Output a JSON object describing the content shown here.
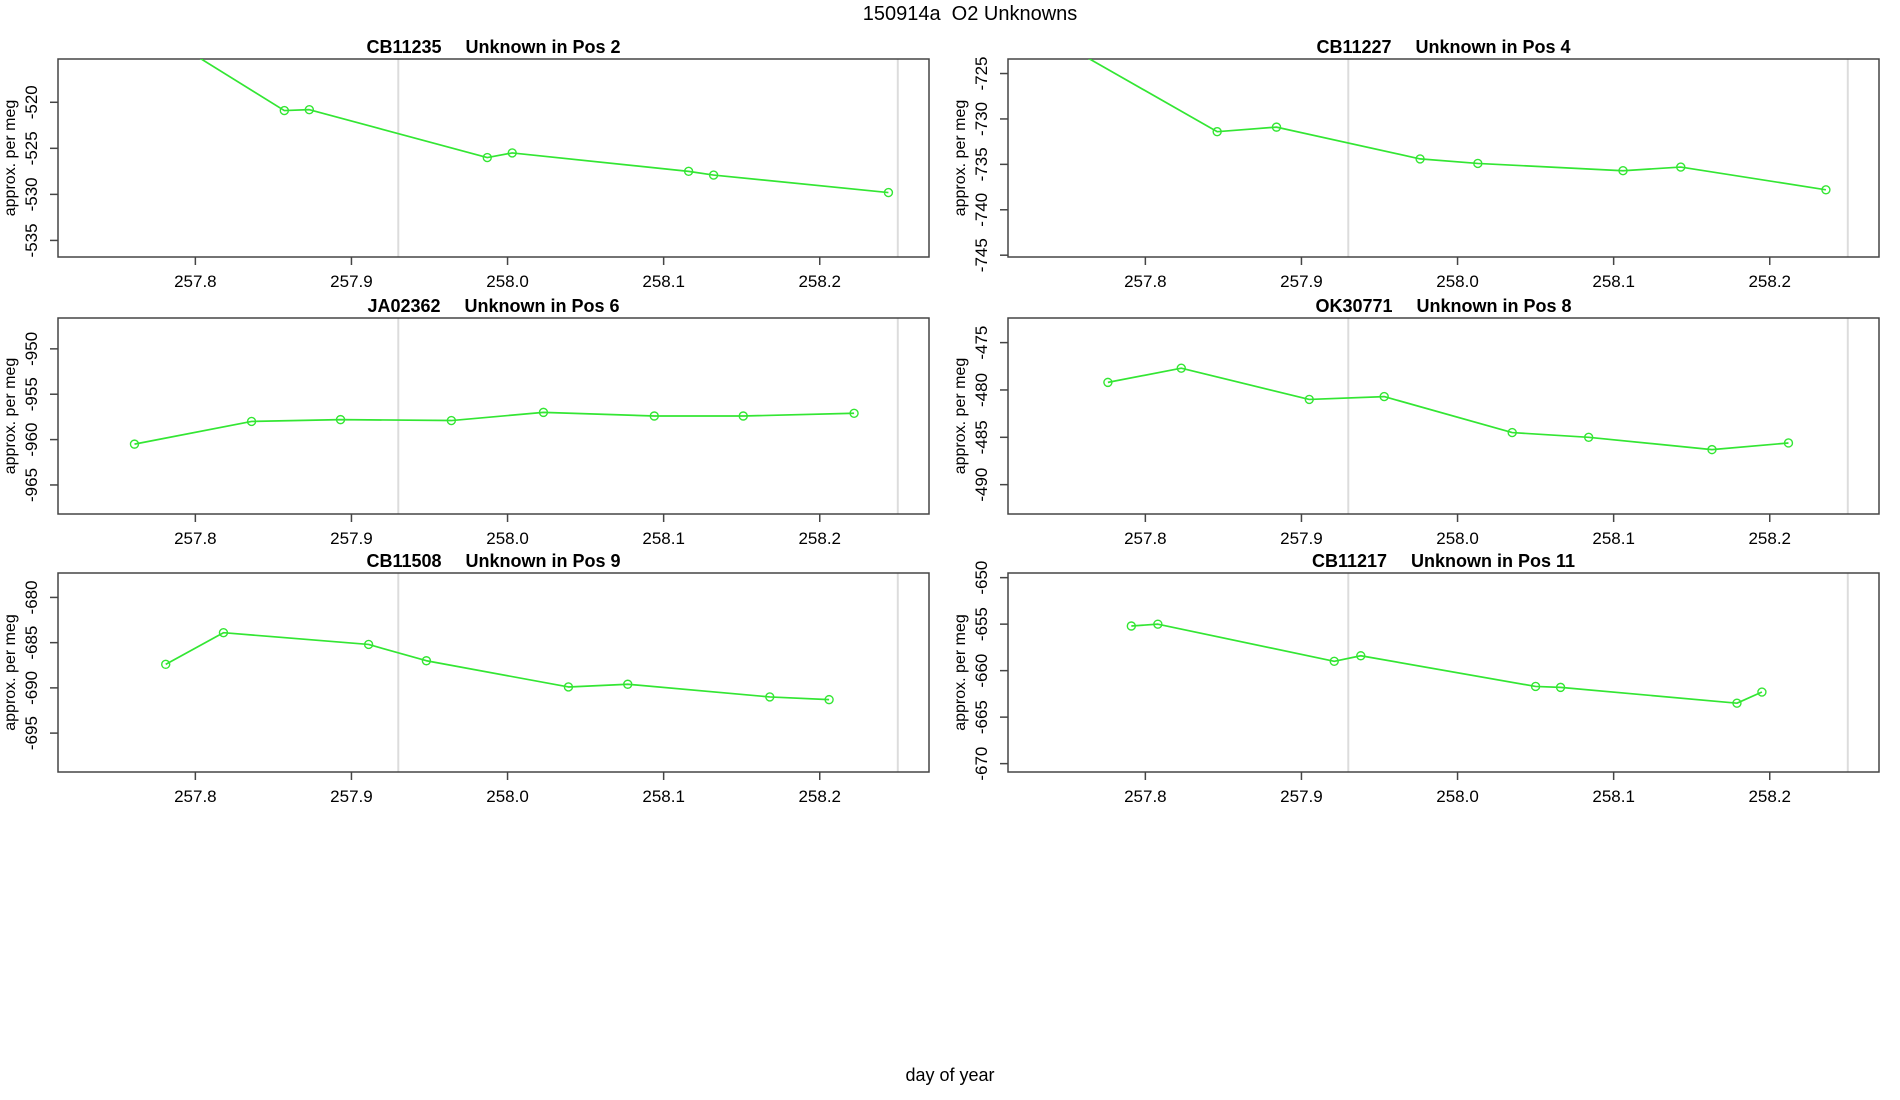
{
  "figure": {
    "title": "150914a  O2 Unknowns",
    "xlabel": "day of year",
    "background_color": "#ffffff",
    "line_color": "#33e633",
    "frame_color": "#454545",
    "refline_color": "#dcdcdc",
    "xlim": [
      257.712,
      258.27
    ],
    "xticks": [
      257.8,
      257.9,
      258.0,
      258.1,
      258.2
    ],
    "refline_x": [
      257.93,
      258.25
    ]
  },
  "chart_data": [
    {
      "type": "line",
      "sample": "CB11235",
      "title": "Unknown in Pos 2",
      "ylabel": "approx. per meg",
      "marker": "open-circle",
      "grid": false,
      "legend": "none",
      "row": 0,
      "col": 0,
      "ylim": [
        -536.8,
        -515.3
      ],
      "yticks": [
        -520,
        -525,
        -530,
        -535
      ],
      "x": [
        257.78,
        257.857,
        257.873,
        257.987,
        258.003,
        258.116,
        258.132,
        258.244
      ],
      "y": [
        -512.8,
        -520.9,
        -520.8,
        -526.0,
        -525.5,
        -527.5,
        -527.9,
        -529.8
      ]
    },
    {
      "type": "line",
      "sample": "CB11227",
      "title": "Unknown in Pos 4",
      "ylabel": "approx. per meg",
      "marker": "open-circle",
      "grid": false,
      "legend": "none",
      "row": 0,
      "col": 1,
      "ylim": [
        -745.2,
        -723.4
      ],
      "yticks": [
        -725,
        -730,
        -735,
        -740,
        -745
      ],
      "x": [
        257.75,
        257.846,
        257.884,
        257.976,
        258.013,
        258.106,
        258.143,
        258.236
      ],
      "y": [
        -722.0,
        -731.4,
        -730.9,
        -734.4,
        -734.9,
        -735.7,
        -735.3,
        -737.8
      ]
    },
    {
      "type": "line",
      "sample": "JA02362",
      "title": "Unknown in Pos 6",
      "ylabel": "approx. per meg",
      "marker": "open-circle",
      "grid": false,
      "legend": "none",
      "row": 1,
      "col": 0,
      "ylim": [
        -968.2,
        -946.6
      ],
      "yticks": [
        -950,
        -955,
        -960,
        -965
      ],
      "x": [
        257.761,
        257.836,
        257.893,
        257.964,
        258.023,
        258.094,
        258.151,
        258.222
      ],
      "y": [
        -960.5,
        -958.0,
        -957.8,
        -957.9,
        -957.0,
        -957.4,
        -957.4,
        -957.1
      ]
    },
    {
      "type": "line",
      "sample": "OK30771",
      "title": "Unknown in Pos 8",
      "ylabel": "approx. per meg",
      "marker": "open-circle",
      "grid": false,
      "legend": "none",
      "row": 1,
      "col": 1,
      "ylim": [
        -493.1,
        -472.4
      ],
      "yticks": [
        -475,
        -480,
        -485,
        -490
      ],
      "x": [
        257.776,
        257.823,
        257.905,
        257.953,
        258.035,
        258.084,
        258.163,
        258.212
      ],
      "y": [
        -479.2,
        -477.7,
        -481.0,
        -480.7,
        -484.5,
        -485.0,
        -486.3,
        -485.6
      ]
    },
    {
      "type": "line",
      "sample": "CB11508",
      "title": "Unknown in Pos 9",
      "ylabel": "approx. per meg",
      "marker": "open-circle",
      "grid": false,
      "legend": "none",
      "row": 2,
      "col": 0,
      "ylim": [
        -699.3,
        -677.3
      ],
      "yticks": [
        -680,
        -685,
        -690,
        -695
      ],
      "x": [
        257.781,
        257.818,
        257.911,
        257.948,
        258.039,
        258.077,
        258.168,
        258.206
      ],
      "y": [
        -687.4,
        -683.9,
        -685.2,
        -687.0,
        -689.9,
        -689.6,
        -691.0,
        -691.3
      ]
    },
    {
      "type": "line",
      "sample": "CB11217",
      "title": "Unknown in Pos 11",
      "ylabel": "approx. per meg",
      "marker": "open-circle",
      "grid": false,
      "legend": "none",
      "row": 2,
      "col": 1,
      "ylim": [
        -670.9,
        -649.5
      ],
      "yticks": [
        -650,
        -655,
        -660,
        -665,
        -670
      ],
      "x": [
        257.791,
        257.808,
        257.921,
        257.938,
        258.05,
        258.066,
        258.179,
        258.195
      ],
      "y": [
        -655.2,
        -655.0,
        -659.0,
        -658.4,
        -661.7,
        -661.8,
        -663.5,
        -662.3
      ]
    }
  ]
}
